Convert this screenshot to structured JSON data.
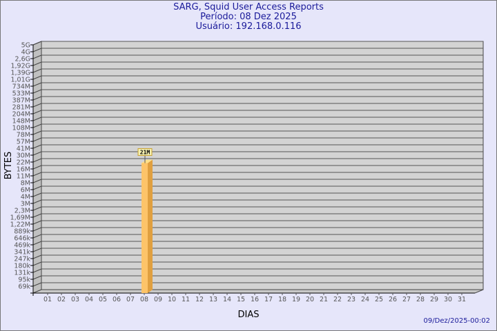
{
  "header": {
    "title": "SARG, Squid User Access Reports",
    "period": "Período: 08 Dez 2025",
    "user": "Usuário: 192.168.0.116"
  },
  "footer": {
    "timestamp": "09/Dez/2025-00:02"
  },
  "chart_data": {
    "type": "bar",
    "title": "SARG, Squid User Access Reports",
    "xlabel": "DIAS",
    "ylabel": "BYTES",
    "y_scale": "log",
    "grid": true,
    "y_ticks": [
      "5G",
      "4G",
      "2,6G",
      "1,92G",
      "1,39G",
      "1,01G",
      "734M",
      "533M",
      "387M",
      "281M",
      "204M",
      "148M",
      "108M",
      "78M",
      "57M",
      "41M",
      "30M",
      "22M",
      "16M",
      "11M",
      "8M",
      "6M",
      "4M",
      "3M",
      "2,3M",
      "1,69M",
      "1,22M",
      "889k",
      "646k",
      "469k",
      "341k",
      "247k",
      "180k",
      "131k",
      "95k",
      "69k"
    ],
    "categories": [
      "01",
      "02",
      "03",
      "04",
      "05",
      "06",
      "07",
      "08",
      "09",
      "10",
      "11",
      "12",
      "13",
      "14",
      "15",
      "16",
      "17",
      "18",
      "19",
      "20",
      "21",
      "22",
      "23",
      "24",
      "25",
      "26",
      "27",
      "28",
      "29",
      "30",
      "31"
    ],
    "bars": [
      {
        "category": "08",
        "value": "21M",
        "label": "21M"
      }
    ],
    "colors": {
      "bar_front": "#fdc469",
      "bar_side": "#e0a040",
      "bar_top": "#ffe08a",
      "plot_bg": "#d3d3d3",
      "grid": "#555555"
    }
  }
}
